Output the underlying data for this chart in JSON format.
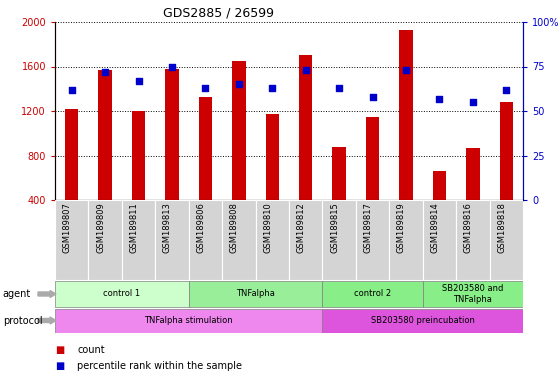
{
  "title": "GDS2885 / 26599",
  "samples": [
    "GSM189807",
    "GSM189809",
    "GSM189811",
    "GSM189813",
    "GSM189806",
    "GSM189808",
    "GSM189810",
    "GSM189812",
    "GSM189815",
    "GSM189817",
    "GSM189819",
    "GSM189814",
    "GSM189816",
    "GSM189818"
  ],
  "counts": [
    1220,
    1570,
    1200,
    1580,
    1330,
    1650,
    1170,
    1700,
    880,
    1150,
    1930,
    660,
    870,
    1280
  ],
  "percentile_ranks": [
    62,
    72,
    67,
    75,
    63,
    65,
    63,
    73,
    63,
    58,
    73,
    57,
    55,
    62
  ],
  "ylim_left": [
    400,
    2000
  ],
  "ylim_right": [
    0,
    100
  ],
  "yticks_left": [
    400,
    800,
    1200,
    1600,
    2000
  ],
  "yticks_right": [
    0,
    25,
    50,
    75,
    100
  ],
  "bar_color": "#cc0000",
  "dot_color": "#0000cc",
  "agent_groups": [
    {
      "label": "control 1",
      "start": 0,
      "end": 4,
      "color": "#ccffcc"
    },
    {
      "label": "TNFalpha",
      "start": 4,
      "end": 8,
      "color": "#99ee99"
    },
    {
      "label": "control 2",
      "start": 8,
      "end": 11,
      "color": "#88ee88"
    },
    {
      "label": "SB203580 and\nTNFalpha",
      "start": 11,
      "end": 14,
      "color": "#88ee88"
    }
  ],
  "protocol_groups": [
    {
      "label": "TNFalpha stimulation",
      "start": 0,
      "end": 8,
      "color": "#ee88ee"
    },
    {
      "label": "SB203580 preincubation",
      "start": 8,
      "end": 14,
      "color": "#dd55dd"
    }
  ],
  "legend_count_label": "count",
  "legend_pct_label": "percentile rank within the sample",
  "xlabel_agent": "agent",
  "xlabel_protocol": "protocol",
  "grid_color": "#888888",
  "title_fontsize": 9,
  "tick_fontsize": 7,
  "label_fontsize": 6,
  "row_fontsize": 6,
  "bar_width": 0.4
}
